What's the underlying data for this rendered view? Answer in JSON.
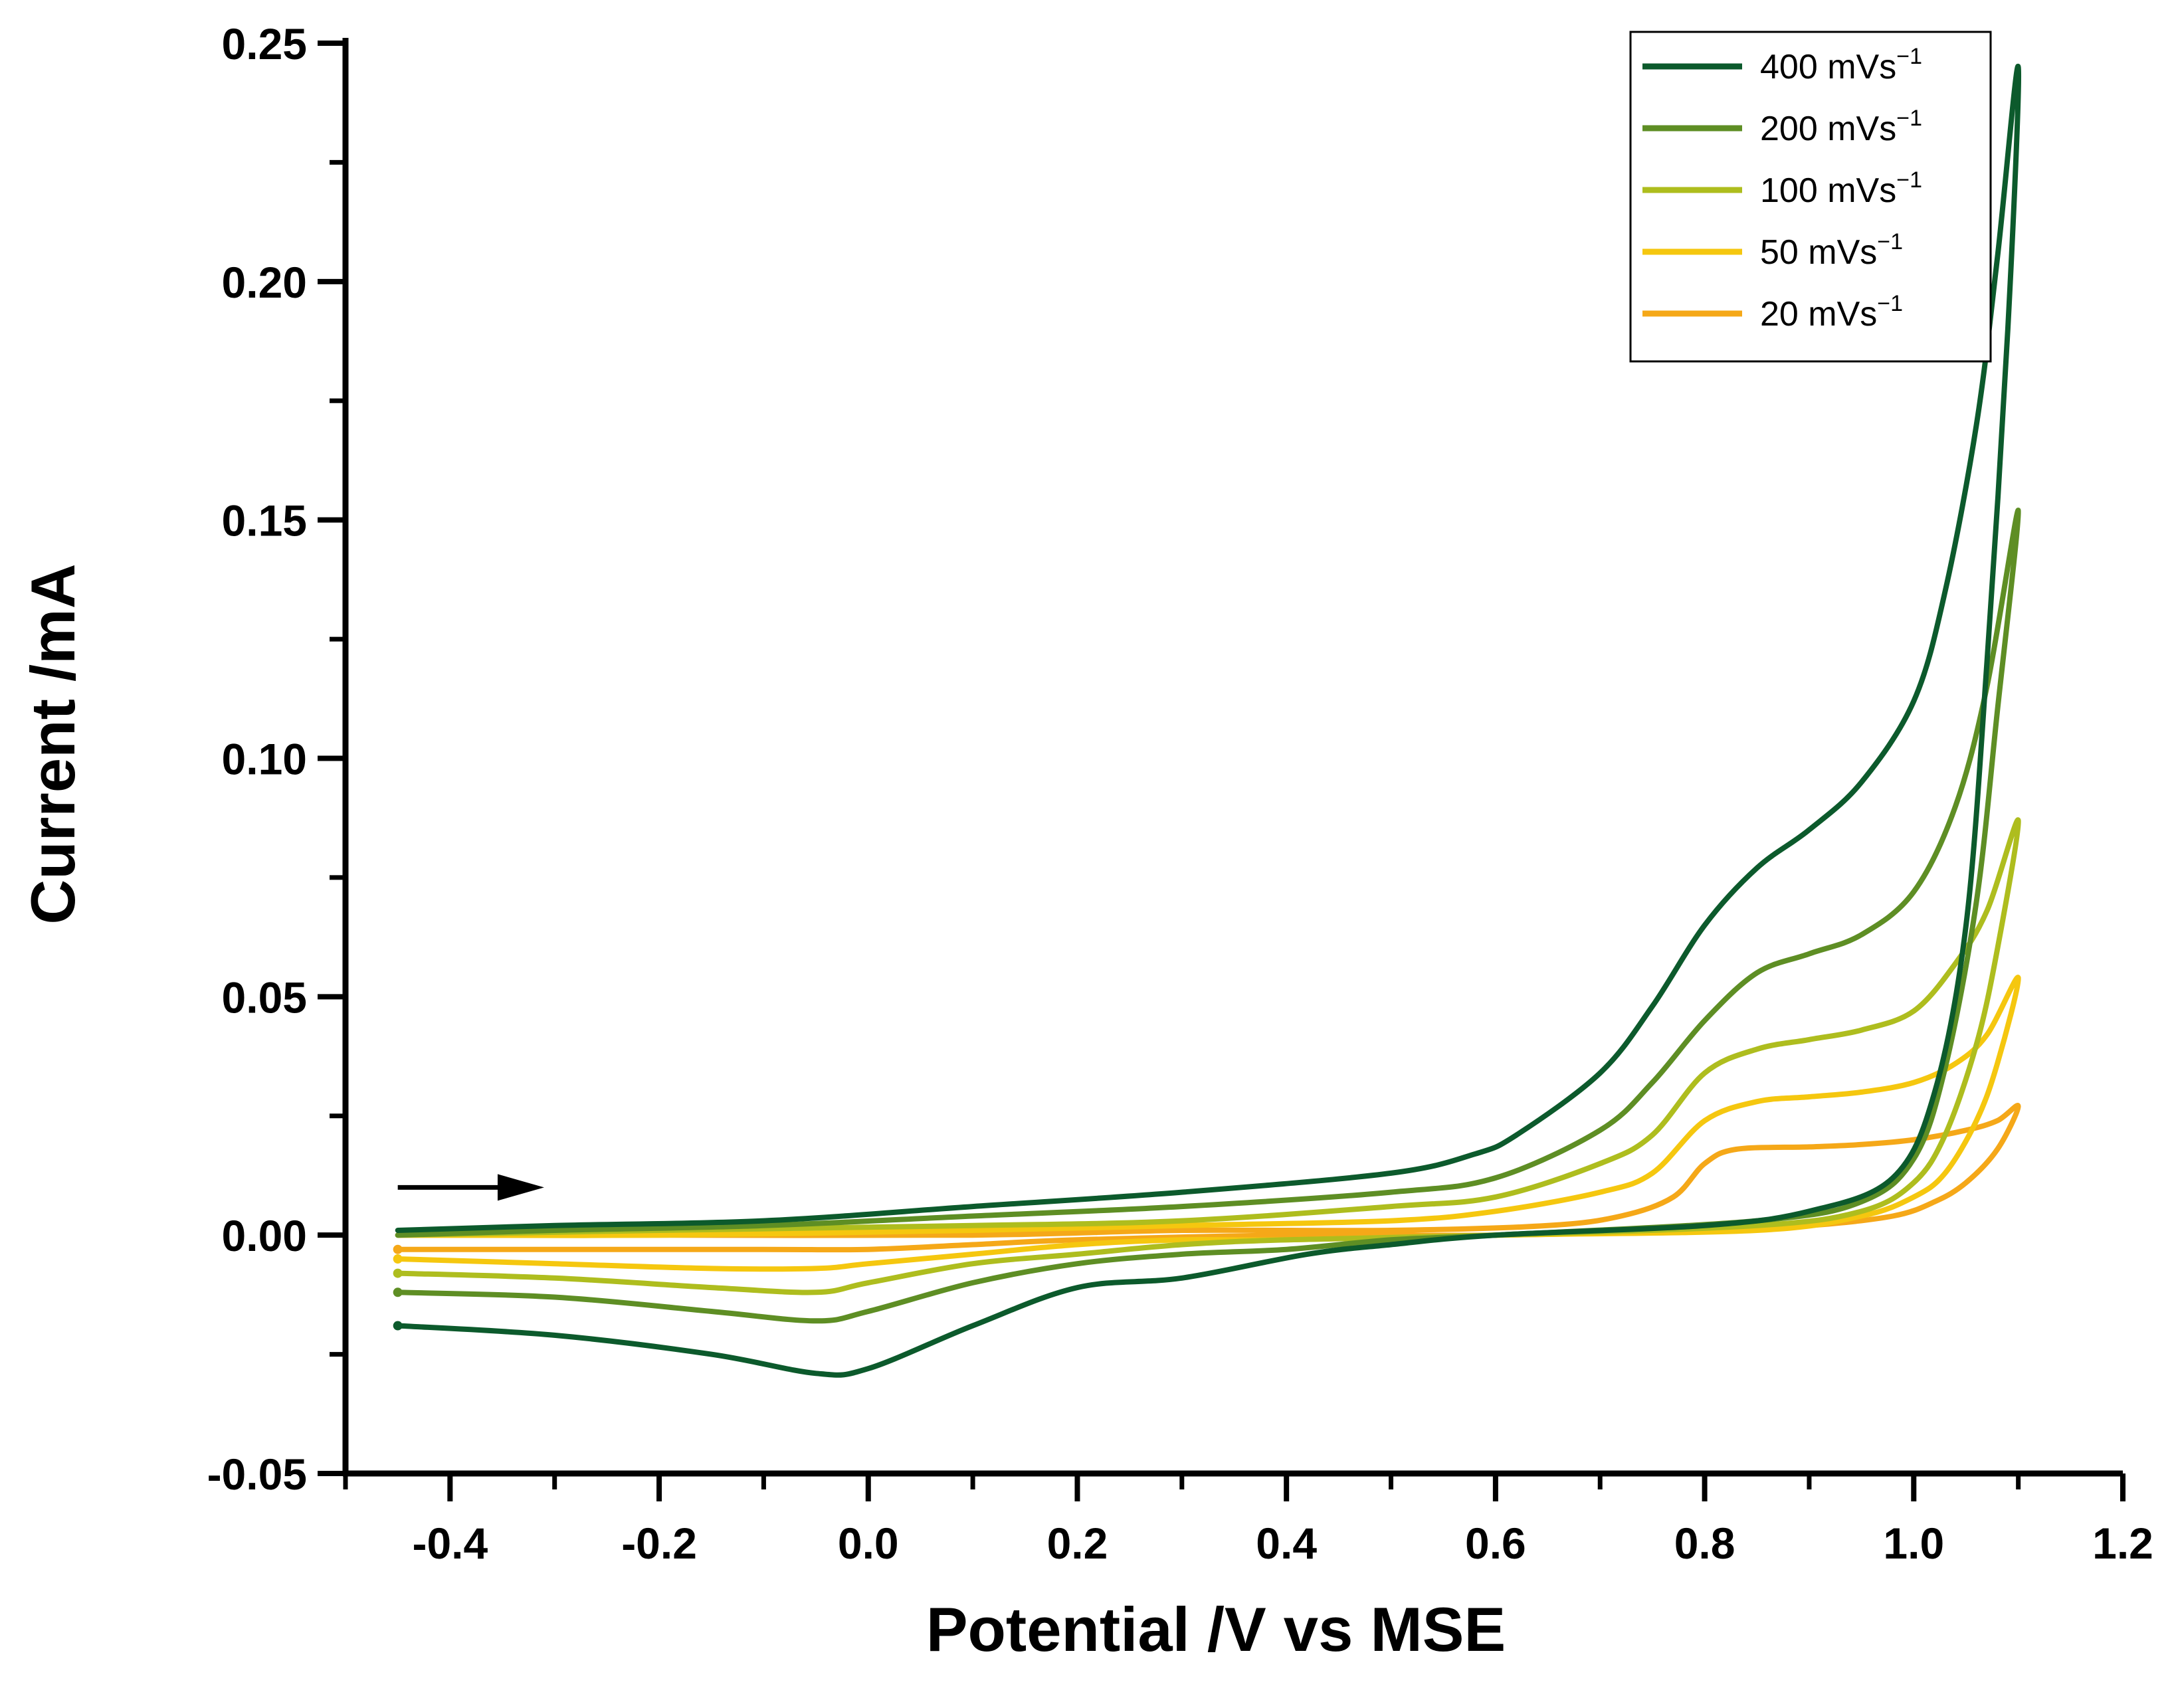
{
  "chart_data": {
    "type": "line",
    "title": "",
    "xlabel": "Potential /V vs MSE",
    "ylabel": "Current /mA",
    "xlim": [
      -0.5,
      1.2
    ],
    "ylim": [
      -0.05,
      0.25
    ],
    "xticks": [
      -0.4,
      -0.2,
      0.0,
      0.2,
      0.4,
      0.6,
      0.8,
      1.0,
      1.2
    ],
    "xtick_labels": [
      "-0.4",
      "-0.2",
      "0.0",
      "0.2",
      "0.4",
      "0.6",
      "0.8",
      "1.0",
      "1.2"
    ],
    "yticks": [
      -0.05,
      0.0,
      0.05,
      0.1,
      0.15,
      0.2,
      0.25
    ],
    "ytick_labels": [
      "-0.05",
      "0.00",
      "0.05",
      "0.10",
      "0.15",
      "0.20",
      "0.25"
    ],
    "grid": false,
    "legend_position": "top-right",
    "annotation": {
      "type": "arrow",
      "direction": "right",
      "from": [
        -0.45,
        0.01
      ],
      "to": [
        -0.31,
        0.01
      ]
    },
    "series": [
      {
        "name": "400 mVs",
        "unit_superscript": "−1",
        "color": "#0c5a2c",
        "forward": [
          [
            -0.45,
            0.001
          ],
          [
            -0.3,
            0.002
          ],
          [
            -0.1,
            0.003
          ],
          [
            0.1,
            0.006
          ],
          [
            0.3,
            0.009
          ],
          [
            0.5,
            0.013
          ],
          [
            0.58,
            0.017
          ],
          [
            0.62,
            0.021
          ],
          [
            0.7,
            0.034
          ],
          [
            0.75,
            0.048
          ],
          [
            0.8,
            0.065
          ],
          [
            0.85,
            0.077
          ],
          [
            0.9,
            0.085
          ],
          [
            0.95,
            0.095
          ],
          [
            1.0,
            0.112
          ],
          [
            1.03,
            0.135
          ],
          [
            1.06,
            0.17
          ],
          [
            1.08,
            0.205
          ],
          [
            1.1,
            0.245
          ]
        ],
        "reverse": [
          [
            1.1,
            0.245
          ],
          [
            1.09,
            0.19
          ],
          [
            1.07,
            0.12
          ],
          [
            1.05,
            0.065
          ],
          [
            1.02,
            0.03
          ],
          [
            0.98,
            0.012
          ],
          [
            0.9,
            0.005
          ],
          [
            0.8,
            0.002
          ],
          [
            0.6,
            0.0
          ],
          [
            0.5,
            -0.002
          ],
          [
            0.42,
            -0.004
          ],
          [
            0.3,
            -0.009
          ],
          [
            0.2,
            -0.011
          ],
          [
            0.1,
            -0.019
          ],
          [
            0.0,
            -0.028
          ],
          [
            -0.05,
            -0.029
          ],
          [
            -0.15,
            -0.025
          ],
          [
            -0.3,
            -0.021
          ],
          [
            -0.45,
            -0.019
          ]
        ]
      },
      {
        "name": "200 mVs",
        "unit_superscript": "−1",
        "color": "#5e8e24",
        "forward": [
          [
            -0.45,
            0.0
          ],
          [
            -0.3,
            0.001
          ],
          [
            -0.1,
            0.002
          ],
          [
            0.1,
            0.004
          ],
          [
            0.3,
            0.006
          ],
          [
            0.5,
            0.009
          ],
          [
            0.6,
            0.012
          ],
          [
            0.7,
            0.022
          ],
          [
            0.75,
            0.032
          ],
          [
            0.8,
            0.045
          ],
          [
            0.85,
            0.055
          ],
          [
            0.9,
            0.059
          ],
          [
            0.95,
            0.063
          ],
          [
            1.0,
            0.072
          ],
          [
            1.04,
            0.09
          ],
          [
            1.07,
            0.115
          ],
          [
            1.1,
            0.152
          ]
        ],
        "reverse": [
          [
            1.1,
            0.152
          ],
          [
            1.08,
            0.11
          ],
          [
            1.06,
            0.07
          ],
          [
            1.03,
            0.035
          ],
          [
            1.0,
            0.016
          ],
          [
            0.95,
            0.007
          ],
          [
            0.85,
            0.003
          ],
          [
            0.6,
            0.0
          ],
          [
            0.5,
            -0.001
          ],
          [
            0.4,
            -0.003
          ],
          [
            0.3,
            -0.004
          ],
          [
            0.2,
            -0.006
          ],
          [
            0.1,
            -0.01
          ],
          [
            0.0,
            -0.016
          ],
          [
            -0.05,
            -0.018
          ],
          [
            -0.15,
            -0.016
          ],
          [
            -0.3,
            -0.013
          ],
          [
            -0.45,
            -0.012
          ]
        ]
      },
      {
        "name": "100 mVs",
        "unit_superscript": "−1",
        "color": "#aebd1e",
        "forward": [
          [
            -0.45,
            0.0
          ],
          [
            -0.2,
            0.001
          ],
          [
            0.1,
            0.002
          ],
          [
            0.3,
            0.003
          ],
          [
            0.5,
            0.006
          ],
          [
            0.6,
            0.008
          ],
          [
            0.7,
            0.015
          ],
          [
            0.75,
            0.021
          ],
          [
            0.8,
            0.034
          ],
          [
            0.85,
            0.039
          ],
          [
            0.9,
            0.041
          ],
          [
            0.95,
            0.043
          ],
          [
            1.0,
            0.047
          ],
          [
            1.04,
            0.057
          ],
          [
            1.07,
            0.068
          ],
          [
            1.1,
            0.087
          ]
        ],
        "reverse": [
          [
            1.1,
            0.087
          ],
          [
            1.08,
            0.06
          ],
          [
            1.06,
            0.04
          ],
          [
            1.03,
            0.021
          ],
          [
            1.0,
            0.011
          ],
          [
            0.95,
            0.005
          ],
          [
            0.85,
            0.002
          ],
          [
            0.6,
            0.0
          ],
          [
            0.4,
            -0.001
          ],
          [
            0.3,
            -0.002
          ],
          [
            0.2,
            -0.004
          ],
          [
            0.1,
            -0.006
          ],
          [
            0.0,
            -0.01
          ],
          [
            -0.05,
            -0.012
          ],
          [
            -0.15,
            -0.011
          ],
          [
            -0.3,
            -0.009
          ],
          [
            -0.45,
            -0.008
          ]
        ]
      },
      {
        "name": "50 mVs",
        "unit_superscript": "−1",
        "color": "#f5c70f",
        "forward": [
          [
            -0.45,
            0.0
          ],
          [
            -0.2,
            0.0
          ],
          [
            0.1,
            0.001
          ],
          [
            0.3,
            0.002
          ],
          [
            0.5,
            0.003
          ],
          [
            0.6,
            0.005
          ],
          [
            0.7,
            0.009
          ],
          [
            0.75,
            0.013
          ],
          [
            0.8,
            0.024
          ],
          [
            0.85,
            0.028
          ],
          [
            0.9,
            0.029
          ],
          [
            0.95,
            0.03
          ],
          [
            1.0,
            0.032
          ],
          [
            1.04,
            0.036
          ],
          [
            1.07,
            0.042
          ],
          [
            1.1,
            0.054
          ]
        ],
        "reverse": [
          [
            1.1,
            0.054
          ],
          [
            1.08,
            0.036
          ],
          [
            1.06,
            0.024
          ],
          [
            1.03,
            0.013
          ],
          [
            1.0,
            0.008
          ],
          [
            0.95,
            0.004
          ],
          [
            0.85,
            0.001
          ],
          [
            0.6,
            0.0
          ],
          [
            0.4,
            -0.001
          ],
          [
            0.3,
            -0.001
          ],
          [
            0.2,
            -0.002
          ],
          [
            0.1,
            -0.004
          ],
          [
            0.0,
            -0.006
          ],
          [
            -0.05,
            -0.007
          ],
          [
            -0.15,
            -0.007
          ],
          [
            -0.3,
            -0.006
          ],
          [
            -0.45,
            -0.005
          ]
        ]
      },
      {
        "name": "20 mVs",
        "unit_superscript": "−1",
        "color": "#f5a818",
        "forward": [
          [
            -0.45,
            0.0
          ],
          [
            -0.2,
            0.0
          ],
          [
            0.1,
            0.0
          ],
          [
            0.3,
            0.001
          ],
          [
            0.5,
            0.001
          ],
          [
            0.65,
            0.002
          ],
          [
            0.72,
            0.004
          ],
          [
            0.77,
            0.008
          ],
          [
            0.8,
            0.015
          ],
          [
            0.83,
            0.018
          ],
          [
            0.9,
            0.0185
          ],
          [
            0.95,
            0.019
          ],
          [
            1.0,
            0.02
          ],
          [
            1.05,
            0.022
          ],
          [
            1.08,
            0.024
          ],
          [
            1.1,
            0.027
          ]
        ],
        "reverse": [
          [
            1.1,
            0.027
          ],
          [
            1.08,
            0.018
          ],
          [
            1.05,
            0.011
          ],
          [
            1.02,
            0.007
          ],
          [
            0.98,
            0.004
          ],
          [
            0.9,
            0.002
          ],
          [
            0.8,
            0.001
          ],
          [
            0.6,
            0.0
          ],
          [
            0.4,
            0.0
          ],
          [
            0.2,
            -0.001
          ],
          [
            0.1,
            -0.002
          ],
          [
            0.0,
            -0.003
          ],
          [
            -0.1,
            -0.003
          ],
          [
            -0.3,
            -0.003
          ],
          [
            -0.45,
            -0.003
          ]
        ]
      }
    ]
  }
}
